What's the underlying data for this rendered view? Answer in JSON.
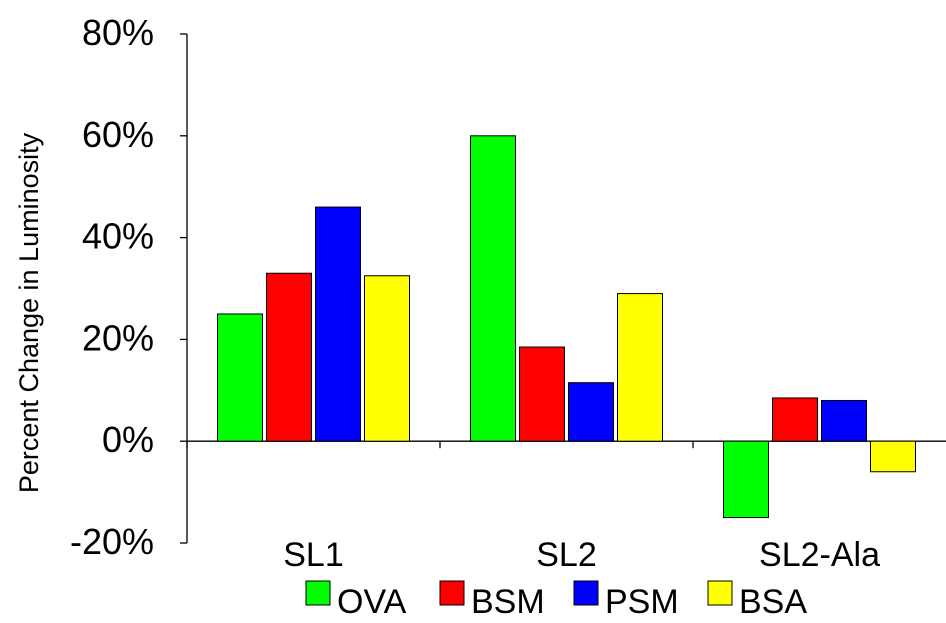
{
  "colors": {
    "OVA": "#00ff00",
    "BSM": "#ff0000",
    "PSM": "#0000ff",
    "BSA": "#ffff00"
  },
  "chart_data": {
    "type": "bar",
    "ylabel": "Percent Change in Luminosity",
    "xlabel": "",
    "title": "",
    "categories": [
      "SL1",
      "SL2",
      "SL2-Ala"
    ],
    "series": [
      {
        "name": "OVA",
        "values": [
          25,
          60,
          -15
        ]
      },
      {
        "name": "BSM",
        "values": [
          33,
          18.5,
          8.5
        ]
      },
      {
        "name": "PSM",
        "values": [
          46,
          11.5,
          8
        ]
      },
      {
        "name": "BSA",
        "values": [
          32.5,
          29,
          -6
        ]
      }
    ],
    "ylim": [
      -20,
      80
    ],
    "yticks": [
      -20,
      0,
      20,
      40,
      60,
      80
    ],
    "ytick_labels": [
      "-20%",
      "0%",
      "20%",
      "40%",
      "60%",
      "80%"
    ],
    "grid": false,
    "legend_position": "bottom"
  }
}
